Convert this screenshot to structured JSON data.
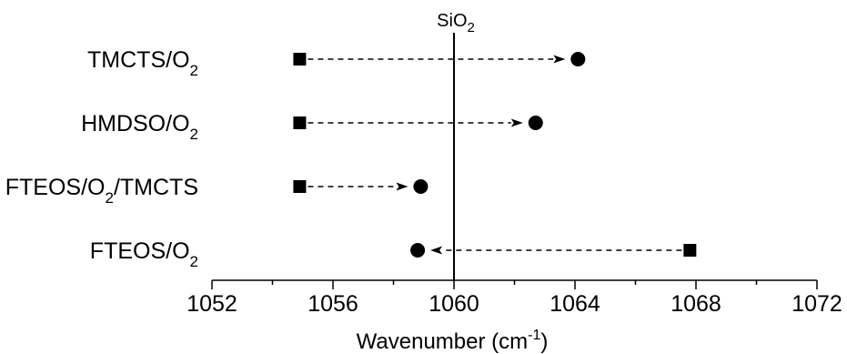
{
  "chart_data": {
    "type": "scatter",
    "xlabel": "Wavenumber (cm-1)",
    "xlabel_base": "Wavenumber (cm",
    "xlabel_sup": "-1",
    "xlabel_end": ")",
    "xlim": [
      1052,
      1072
    ],
    "xticks": [
      1052,
      1056,
      1060,
      1064,
      1068,
      1072
    ],
    "reference_line": {
      "x": 1060,
      "label_base": "SiO",
      "label_sub": "2"
    },
    "categories": [
      {
        "base": "TMCTS/O",
        "sub": "2",
        "rest": ""
      },
      {
        "base": "HMDSO/O",
        "sub": "2",
        "rest": ""
      },
      {
        "base": "FTEOS/O",
        "sub": "2",
        "rest": "/TMCTS"
      },
      {
        "base": "FTEOS/O",
        "sub": "2",
        "rest": ""
      }
    ],
    "series": [
      {
        "marker": "square",
        "values": [
          1054.9,
          1054.9,
          1054.9,
          1067.8
        ]
      },
      {
        "marker": "circle",
        "values": [
          1064.1,
          1062.7,
          1058.9,
          1058.8
        ]
      }
    ],
    "arrows": "dashed arrow from square marker to circle marker"
  }
}
